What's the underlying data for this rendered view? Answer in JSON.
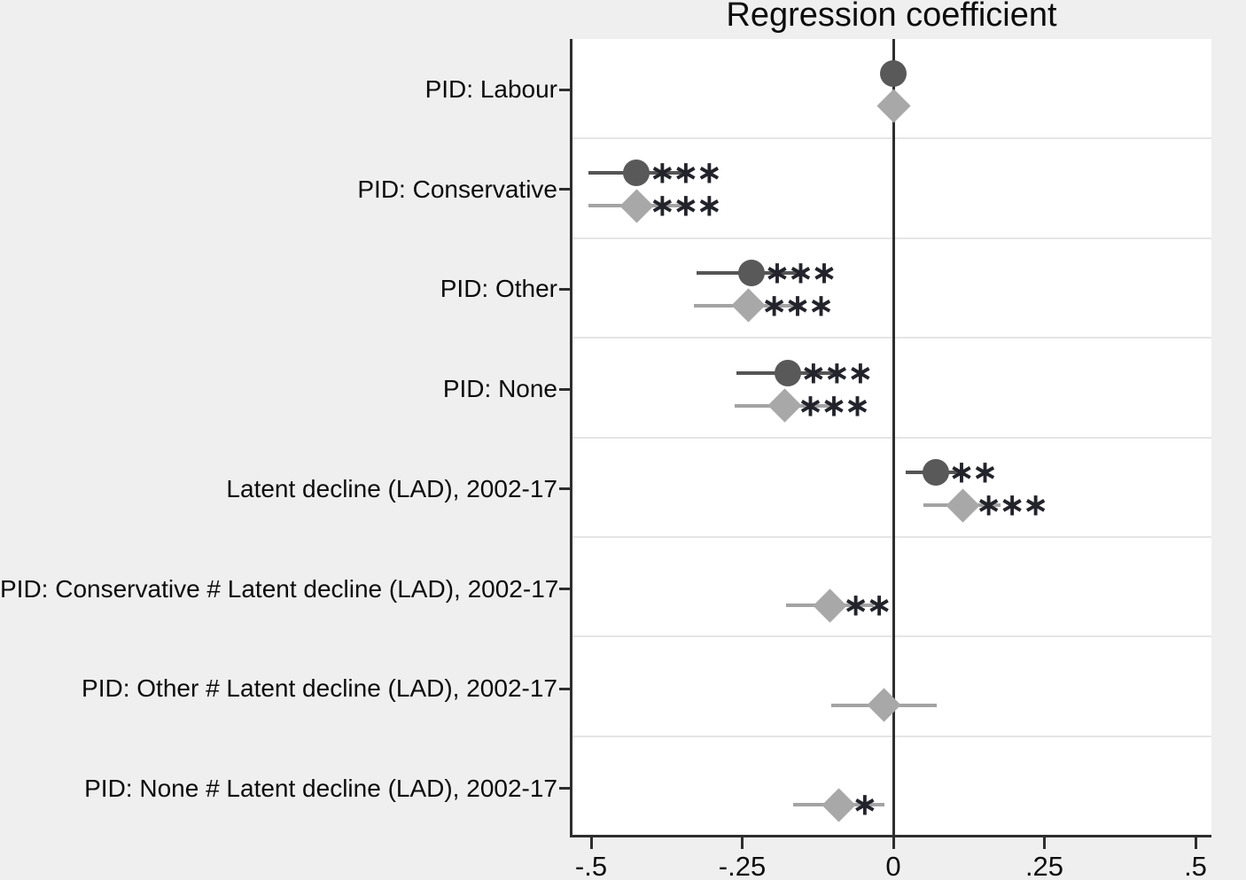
{
  "title": "Regression coefficient",
  "colors": {
    "background": "#efefef",
    "plot_background": "#ffffff",
    "gridline": "#e5e5e5",
    "axis": "#2e2e2e",
    "zero_line": "#2e2e2e",
    "series_circle_marker": "#595959",
    "series_circle_ci": "#555555",
    "series_diamond_marker": "#a8a8a8",
    "series_diamond_ci": "#a3a3a3",
    "stars": "#23232b",
    "text": "#0c0c0c"
  },
  "chart_data": {
    "type": "scatter",
    "subtype": "coefficient-plot-with-confidence-intervals",
    "title": "Regression coefficient",
    "xlabel": "",
    "ylabel": "",
    "xlim": [
      -0.532,
      0.527
    ],
    "x_ticks": [
      {
        "value": -0.5,
        "label": "-.5"
      },
      {
        "value": -0.25,
        "label": "-.25"
      },
      {
        "value": 0,
        "label": "0"
      },
      {
        "value": 0.25,
        "label": ".25"
      },
      {
        "value": 0.5,
        "label": ".5"
      }
    ],
    "grid": "horizontal-category-separators",
    "zero_reference_line": 0,
    "legend_position": "none",
    "categories": [
      "PID: Labour",
      "PID: Conservative",
      "PID: Other",
      "PID: None",
      "Latent decline (LAD), 2002-17",
      "PID: Conservative # Latent decline (LAD), 2002-17",
      "PID: Other # Latent decline (LAD), 2002-17",
      "PID: None # Latent decline (LAD), 2002-17"
    ],
    "series": [
      {
        "name": "circle-series",
        "marker": "circle",
        "marker_color": "#595959",
        "ci_color": "#555555",
        "points": [
          {
            "value": 0,
            "ci": null,
            "stars": ""
          },
          {
            "value": -0.425,
            "ci": [
              -0.505,
              -0.34
            ],
            "stars": "***"
          },
          {
            "value": -0.235,
            "ci": [
              -0.325,
              -0.145
            ],
            "stars": "***"
          },
          {
            "value": -0.175,
            "ci": [
              -0.26,
              -0.09
            ],
            "stars": "***"
          },
          {
            "value": 0.07,
            "ci": [
              0.02,
              0.115
            ],
            "stars": "**"
          },
          null,
          null,
          null
        ]
      },
      {
        "name": "diamond-series",
        "marker": "diamond",
        "marker_color": "#a8a8a8",
        "ci_color": "#a3a3a3",
        "points": [
          {
            "value": 0,
            "ci": null,
            "stars": ""
          },
          {
            "value": -0.425,
            "ci": [
              -0.505,
              -0.34
            ],
            "stars": "***"
          },
          {
            "value": -0.24,
            "ci": [
              -0.33,
              -0.15
            ],
            "stars": "***"
          },
          {
            "value": -0.18,
            "ci": [
              -0.262,
              -0.092
            ],
            "stars": "***"
          },
          {
            "value": 0.115,
            "ci": [
              0.05,
              0.178
            ],
            "stars": "***"
          },
          {
            "value": -0.105,
            "ci": [
              -0.178,
              -0.032
            ],
            "stars": "**"
          },
          {
            "value": -0.016,
            "ci": [
              -0.103,
              0.072
            ],
            "stars": ""
          },
          {
            "value": -0.09,
            "ci": [
              -0.165,
              -0.015
            ],
            "stars": "*"
          }
        ]
      }
    ]
  }
}
